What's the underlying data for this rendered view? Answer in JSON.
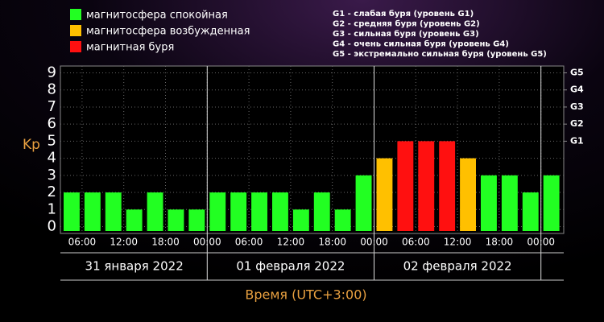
{
  "chart_data": {
    "type": "bar",
    "legend": [
      {
        "name": "магнитосфера спокойная",
        "color": "#22ff22"
      },
      {
        "name": "магнитосфера возбужденная",
        "color": "#ffc000"
      },
      {
        "name": "магнитная буря",
        "color": "#ff1010"
      }
    ],
    "storm_levels": [
      "G1 - слабая буря (уровень G1)",
      "G2 - средняя буря (уровень G2)",
      "G3 - сильная буря (уровень G3)",
      "G4 - очень сильная буря (уровень G4)",
      "G5 - экстремально сильная буря (уровень G5)"
    ],
    "ylabel": "Kp",
    "xlabel": "Время (UTC+3:00)",
    "values": [
      2,
      2,
      2,
      1,
      2,
      1,
      1,
      2,
      2,
      2,
      2,
      1,
      2,
      1,
      3,
      4,
      5,
      5,
      5,
      4,
      3,
      3,
      2,
      3
    ],
    "colors": [
      "#22ff22",
      "#22ff22",
      "#22ff22",
      "#22ff22",
      "#22ff22",
      "#22ff22",
      "#22ff22",
      "#22ff22",
      "#22ff22",
      "#22ff22",
      "#22ff22",
      "#22ff22",
      "#22ff22",
      "#22ff22",
      "#22ff22",
      "#ffc000",
      "#ff1010",
      "#ff1010",
      "#ff1010",
      "#ffc000",
      "#22ff22",
      "#22ff22",
      "#22ff22",
      "#22ff22"
    ],
    "xtick_labels": [
      "06:00",
      "12:00",
      "18:00",
      "00:00",
      "06:00",
      "12:00",
      "18:00",
      "00:00",
      "06:00",
      "12:00",
      "18:00",
      "00:00"
    ],
    "days": [
      "31 января 2022",
      "01 февраля 2022",
      "02 февраля 2022"
    ],
    "ylim": [
      -0.4,
      9.4
    ],
    "yticks": [
      0,
      1,
      2,
      3,
      4,
      5,
      6,
      7,
      8,
      9
    ],
    "y2ticks": [
      {
        "value": 5,
        "label": "G1"
      },
      {
        "value": 6,
        "label": "G2"
      },
      {
        "value": 7,
        "label": "G3"
      },
      {
        "value": 8,
        "label": "G4"
      },
      {
        "value": 9,
        "label": "G5"
      }
    ],
    "grid": true
  }
}
